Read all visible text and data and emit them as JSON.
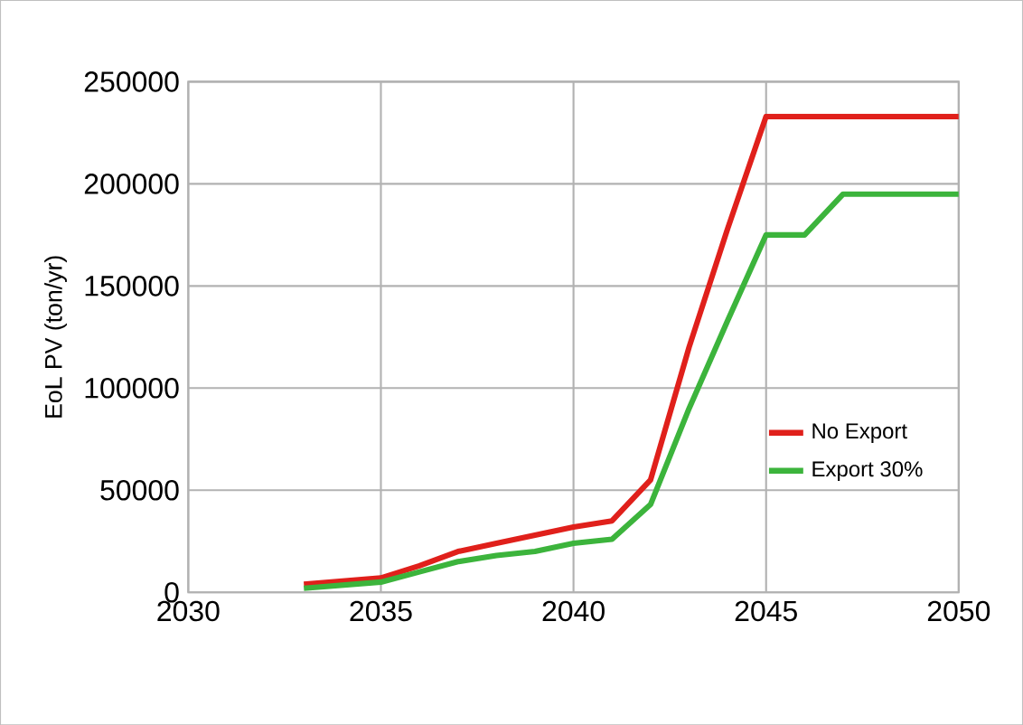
{
  "chart_data": {
    "type": "line",
    "ylabel": "EoL PV (ton/yr)",
    "xlim": [
      2030,
      2050
    ],
    "xticks": [
      2030,
      2035,
      2040,
      2045,
      2050
    ],
    "ylim": [
      0,
      250000
    ],
    "yticks": [
      0,
      50000,
      100000,
      150000,
      200000,
      250000
    ],
    "grid": true,
    "legend": "right",
    "line_style": "solid",
    "series": [
      {
        "name": "No Export",
        "color": "#e0201b",
        "x": [
          2033,
          2035,
          2036,
          2037,
          2038,
          2039,
          2040,
          2041,
          2042,
          2043,
          2044,
          2045,
          2050
        ],
        "values": [
          4000,
          7000,
          13000,
          20000,
          24000,
          28000,
          32000,
          35000,
          55000,
          120000,
          178000,
          233000,
          233000
        ]
      },
      {
        "name": "Export 30%",
        "color": "#3cb43c",
        "x": [
          2033,
          2035,
          2036,
          2037,
          2038,
          2039,
          2040,
          2041,
          2042,
          2043,
          2044,
          2045,
          2046,
          2047,
          2050
        ],
        "values": [
          2000,
          5000,
          10000,
          15000,
          18000,
          20000,
          24000,
          26000,
          43000,
          90000,
          133000,
          175000,
          175000,
          195000,
          195000
        ]
      }
    ]
  }
}
